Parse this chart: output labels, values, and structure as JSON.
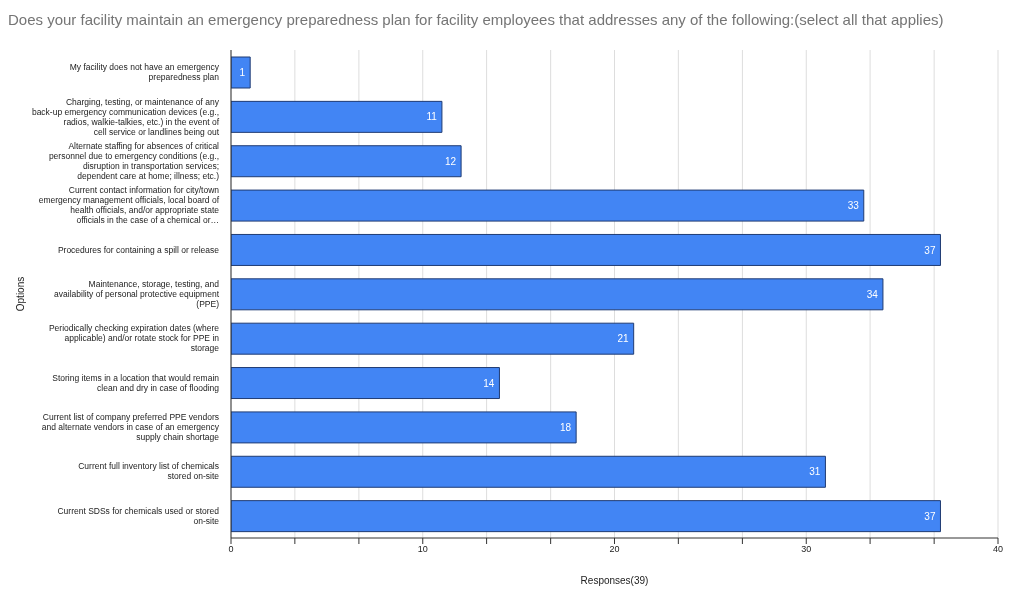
{
  "chart_data": {
    "type": "bar",
    "orientation": "horizontal",
    "title": "Does your facility maintain an emergency preparedness plan for facility employees that addresses any of the following:(select all that applies)",
    "xlabel": "Responses(39)",
    "ylabel": "Options",
    "categories": [
      "My facility does not have an emergency preparedness plan",
      "Charging, testing, or maintenance of any back-up emergency communication devices (e.g., radios, walkie-talkies, etc.) in the event of cell service or landlines being out",
      "Alternate staffing for absences of critical personnel due to emergency conditions (e.g., disruption in transportation services; dependent care at home; illness; etc.)",
      "Current contact information for city/town emergency management officials, local board of health officials, and/or appropriate state officials in the case of a chemical or…",
      "Procedures for containing a spill or release",
      "Maintenance, storage, testing, and availability of personal protective equipment (PPE)",
      "Periodically checking expiration dates (where applicable) and/or rotate stock for PPE in storage",
      "Storing items in a location that would remain clean and dry in case of flooding",
      "Current list of company preferred PPE vendors and alternate vendors in case of an emergency supply chain shortage",
      "Current full inventory list of chemicals stored on-site",
      "Current SDSs for chemicals used or stored on-site"
    ],
    "values": [
      1,
      11,
      12,
      33,
      37,
      34,
      21,
      14,
      18,
      31,
      37
    ],
    "color": "#4285f4",
    "data_labels": true,
    "xlim": [
      0,
      40
    ],
    "xticks": [
      0,
      {
        "value": 3.33,
        "label": null
      },
      {
        "value": 6.67,
        "label": null
      },
      10,
      {
        "value": 13.33,
        "label": null
      },
      {
        "value": 16.67,
        "label": null
      },
      20,
      {
        "value": 23.33,
        "label": null
      },
      {
        "value": 26.67,
        "label": null
      },
      30,
      {
        "value": 33.33,
        "label": null
      },
      {
        "value": 36.67,
        "label": null
      },
      40
    ],
    "grid": "x"
  }
}
